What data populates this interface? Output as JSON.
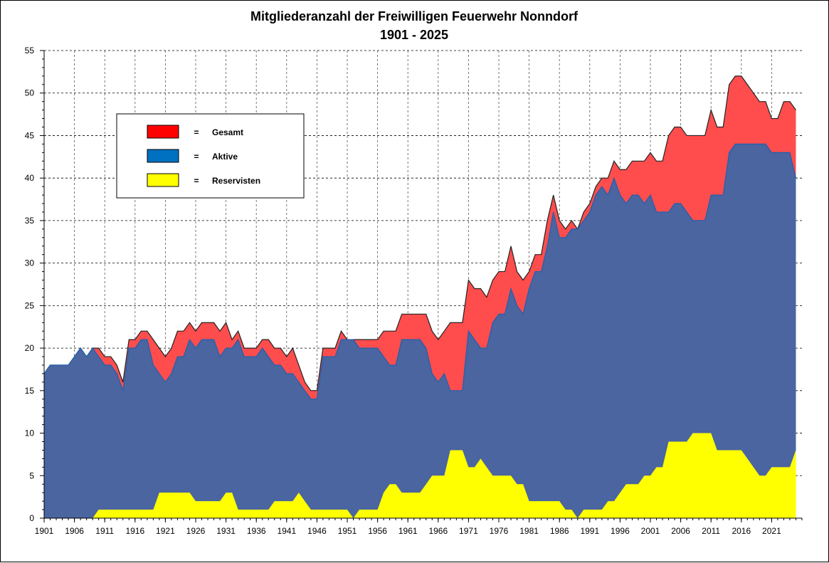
{
  "chart_data": {
    "type": "area",
    "title": "Mitgliederanzahl  der Freiwilligen  Feuerwehr Nonndorf",
    "subtitle": "1901 - 2025",
    "xlabel": "",
    "ylabel": "",
    "xlim": [
      1901,
      2026
    ],
    "ylim": [
      0,
      55
    ],
    "y_ticks": [
      0,
      5,
      10,
      15,
      20,
      25,
      30,
      35,
      40,
      45,
      50,
      55
    ],
    "x_ticks": [
      1901,
      1906,
      1911,
      1916,
      1921,
      1926,
      1931,
      1936,
      1941,
      1946,
      1951,
      1956,
      1961,
      1966,
      1971,
      1976,
      1981,
      1986,
      1991,
      1996,
      2001,
      2006,
      2011,
      2016,
      2021
    ],
    "grid": true,
    "legend_position": "top-left",
    "years_start": 1901,
    "series": [
      {
        "name": "Gesamt",
        "color": "#ff4d4d",
        "swatch_color": "#ff0000",
        "values": [
          17,
          18,
          18,
          18,
          18,
          19,
          20,
          19,
          20,
          20,
          19,
          19,
          18,
          16,
          21,
          21,
          22,
          22,
          21,
          20,
          19,
          20,
          22,
          22,
          23,
          22,
          23,
          23,
          23,
          22,
          23,
          21,
          22,
          20,
          20,
          20,
          21,
          21,
          20,
          20,
          19,
          20,
          18,
          16,
          15,
          15,
          20,
          20,
          20,
          22,
          21,
          21,
          21,
          21,
          21,
          21,
          22,
          22,
          22,
          24,
          24,
          24,
          24,
          24,
          22,
          21,
          22,
          23,
          23,
          23,
          28,
          27,
          27,
          26,
          28,
          29,
          29,
          32,
          29,
          28,
          29,
          31,
          31,
          35,
          38,
          35,
          34,
          35,
          34,
          36,
          37,
          39,
          40,
          40,
          42,
          41,
          41,
          42,
          42,
          42,
          43,
          42,
          42,
          45,
          46,
          46,
          45,
          45,
          45,
          45,
          48,
          46,
          46,
          51,
          52,
          52,
          51,
          50,
          49,
          49,
          47,
          47,
          49,
          49,
          48
        ]
      },
      {
        "name": "Aktive",
        "color": "#4a65a0",
        "swatch_color": "#0070c0",
        "values": [
          17,
          18,
          18,
          18,
          18,
          19,
          20,
          19,
          20,
          19,
          18,
          18,
          17,
          15,
          20,
          20,
          21,
          21,
          18,
          17,
          16,
          17,
          19,
          19,
          21,
          20,
          21,
          21,
          21,
          19,
          20,
          20,
          21,
          19,
          19,
          19,
          20,
          19,
          18,
          18,
          17,
          17,
          16,
          15,
          14,
          14,
          19,
          19,
          19,
          21,
          21,
          21,
          20,
          20,
          20,
          20,
          19,
          18,
          18,
          21,
          21,
          21,
          21,
          20,
          17,
          16,
          17,
          15,
          15,
          15,
          22,
          21,
          20,
          20,
          23,
          24,
          24,
          27,
          25,
          24,
          27,
          29,
          29,
          32,
          36,
          33,
          33,
          34,
          34,
          35,
          36,
          38,
          39,
          38,
          40,
          38,
          37,
          38,
          38,
          37,
          38,
          36,
          36,
          36,
          37,
          37,
          36,
          35,
          35,
          35,
          38,
          38,
          38,
          43,
          44,
          44,
          44,
          44,
          44,
          44,
          43,
          43,
          43,
          43,
          40
        ]
      },
      {
        "name": "Reservisten",
        "color": "#ffff00",
        "swatch_color": "#ffff00",
        "values": [
          0,
          0,
          0,
          0,
          0,
          0,
          0,
          0,
          0,
          1,
          1,
          1,
          1,
          1,
          1,
          1,
          1,
          1,
          1,
          3,
          3,
          3,
          3,
          3,
          3,
          2,
          2,
          2,
          2,
          2,
          3,
          3,
          1,
          1,
          1,
          1,
          1,
          1,
          2,
          2,
          2,
          2,
          3,
          2,
          1,
          1,
          1,
          1,
          1,
          1,
          1,
          0,
          1,
          1,
          1,
          1,
          3,
          4,
          4,
          3,
          3,
          3,
          3,
          4,
          5,
          5,
          5,
          8,
          8,
          8,
          6,
          6,
          7,
          6,
          5,
          5,
          5,
          5,
          4,
          4,
          2,
          2,
          2,
          2,
          2,
          2,
          1,
          1,
          0,
          1,
          1,
          1,
          1,
          2,
          2,
          3,
          4,
          4,
          4,
          5,
          5,
          6,
          6,
          9,
          9,
          9,
          9,
          10,
          10,
          10,
          10,
          8,
          8,
          8,
          8,
          8,
          7,
          6,
          5,
          5,
          6,
          6,
          6,
          6,
          8
        ]
      }
    ],
    "legend_separator": "="
  }
}
